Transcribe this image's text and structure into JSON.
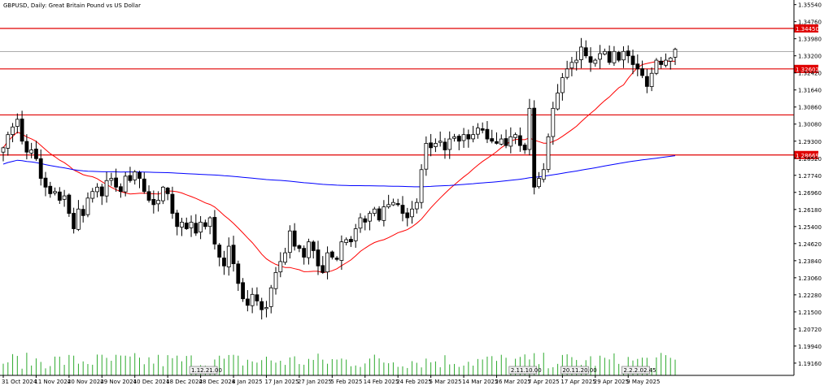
{
  "header": {
    "title": "GBPUSD, Daily:  Great Britain Pound vs US Dollar"
  },
  "colors": {
    "candle_outline": "#000000",
    "ma_fast": "#ff0000",
    "ma_slow": "#0000ff",
    "level_line": "#e00000",
    "volume_bar": "#2eaa2e",
    "current_price_line": "#a0a0a0",
    "level_tag_bg": "#e00000",
    "grid": "#ffffff"
  },
  "chart_data": {
    "type": "candlestick",
    "title": "GBPUSD, Daily:  Great Britain Pound vs US Dollar",
    "ylim": [
      1.186,
      1.3575
    ],
    "y_ticks": [
      "1.35540",
      "1.34760",
      "1.33980",
      "1.33200",
      "1.32420",
      "1.31640",
      "1.30860",
      "1.30080",
      "1.29300",
      "1.28520",
      "1.27740",
      "1.26960",
      "1.26180",
      "1.25400",
      "1.24620",
      "1.23840",
      "1.23060",
      "1.22280",
      "1.21500",
      "1.20720",
      "1.19940",
      "1.19160"
    ],
    "x_ticks": [
      {
        "label": "31 Oct 2024",
        "index": 0
      },
      {
        "label": "11 Nov 2024",
        "index": 7
      },
      {
        "label": "20 Nov 2024",
        "index": 14
      },
      {
        "label": "29 Nov 2024",
        "index": 21
      },
      {
        "label": "10 Dec 2024",
        "index": 28
      },
      {
        "label": "18 Dec 2024",
        "index": 35
      },
      {
        "label": "28 Dec 2024",
        "index": 42
      },
      {
        "label": "8 Jan 2025",
        "index": 49
      },
      {
        "label": "17 Jan 2025",
        "index": 56
      },
      {
        "label": "27 Jan 2025",
        "index": 63
      },
      {
        "label": "5 Feb 2025",
        "index": 70
      },
      {
        "label": "14 Feb 2025",
        "index": 77
      },
      {
        "label": "24 Feb 2025",
        "index": 84
      },
      {
        "label": "5 Mar 2025",
        "index": 91
      },
      {
        "label": "14 Mar 2025",
        "index": 98
      },
      {
        "label": "26 Mar 2025",
        "index": 105
      },
      {
        "label": "7 Apr 2025",
        "index": 112
      },
      {
        "label": "17 Apr 2025",
        "index": 119
      },
      {
        "label": "29 Apr 2025",
        "index": 126
      },
      {
        "label": "9 May 2025",
        "index": 133
      }
    ],
    "levels": [
      {
        "value": 1.3445,
        "label": "1.34450"
      },
      {
        "value": 1.32602,
        "label": "1.32602"
      },
      {
        "value": 1.305,
        "label": ""
      },
      {
        "value": 1.28669,
        "label": "1.28669"
      }
    ],
    "current_price": {
      "value": 1.3339,
      "label": "1.33390"
    },
    "axis_badges": [
      {
        "label": "1.12.21.00",
        "index": 40
      },
      {
        "label": "2.11.10.00",
        "index": 108
      },
      {
        "label": "20.11.20.00",
        "index": 119
      },
      {
        "label": "2.2.2.02.45",
        "index": 132
      }
    ],
    "closes": [
      1.29,
      1.296,
      1.2995,
      1.303,
      1.293,
      1.288,
      1.289,
      1.285,
      1.276,
      1.272,
      1.269,
      1.27,
      1.266,
      1.268,
      1.26,
      1.253,
      1.262,
      1.259,
      1.267,
      1.27,
      1.272,
      1.268,
      1.275,
      1.276,
      1.272,
      1.27,
      1.277,
      1.275,
      1.279,
      1.276,
      1.27,
      1.266,
      1.264,
      1.266,
      1.272,
      1.269,
      1.26,
      1.254,
      1.256,
      1.253,
      1.256,
      1.251,
      1.256,
      1.254,
      1.258,
      1.246,
      1.24,
      1.236,
      1.245,
      1.237,
      1.228,
      1.221,
      1.218,
      1.223,
      1.22,
      1.216,
      1.217,
      1.226,
      1.233,
      1.238,
      1.242,
      1.252,
      1.245,
      1.244,
      1.24,
      1.247,
      1.243,
      1.236,
      1.233,
      1.242,
      1.24,
      1.239,
      1.247,
      1.248,
      1.247,
      1.253,
      1.258,
      1.256,
      1.26,
      1.262,
      1.257,
      1.263,
      1.264,
      1.265,
      1.264,
      1.26,
      1.258,
      1.262,
      1.265,
      1.28,
      1.292,
      1.29,
      1.292,
      1.293,
      1.289,
      1.294,
      1.295,
      1.293,
      1.296,
      1.294,
      1.296,
      1.299,
      1.298,
      1.294,
      1.293,
      1.292,
      1.294,
      1.291,
      1.295,
      1.296,
      1.291,
      1.289,
      1.308,
      1.272,
      1.276,
      1.28,
      1.295,
      1.308,
      1.315,
      1.322,
      1.326,
      1.329,
      1.33,
      1.336,
      1.332,
      1.329,
      1.33,
      1.333,
      1.334,
      1.329,
      1.334,
      1.33,
      1.334,
      1.332,
      1.328,
      1.326,
      1.323,
      1.318,
      1.324,
      1.33,
      1.328,
      1.33,
      1.331,
      1.335
    ],
    "series": [
      {
        "name": "",
        "type": "ma",
        "period": 20,
        "color": "#ff0000"
      },
      {
        "name": "",
        "type": "ma",
        "period": 200,
        "color": "#0000ff"
      }
    ]
  }
}
